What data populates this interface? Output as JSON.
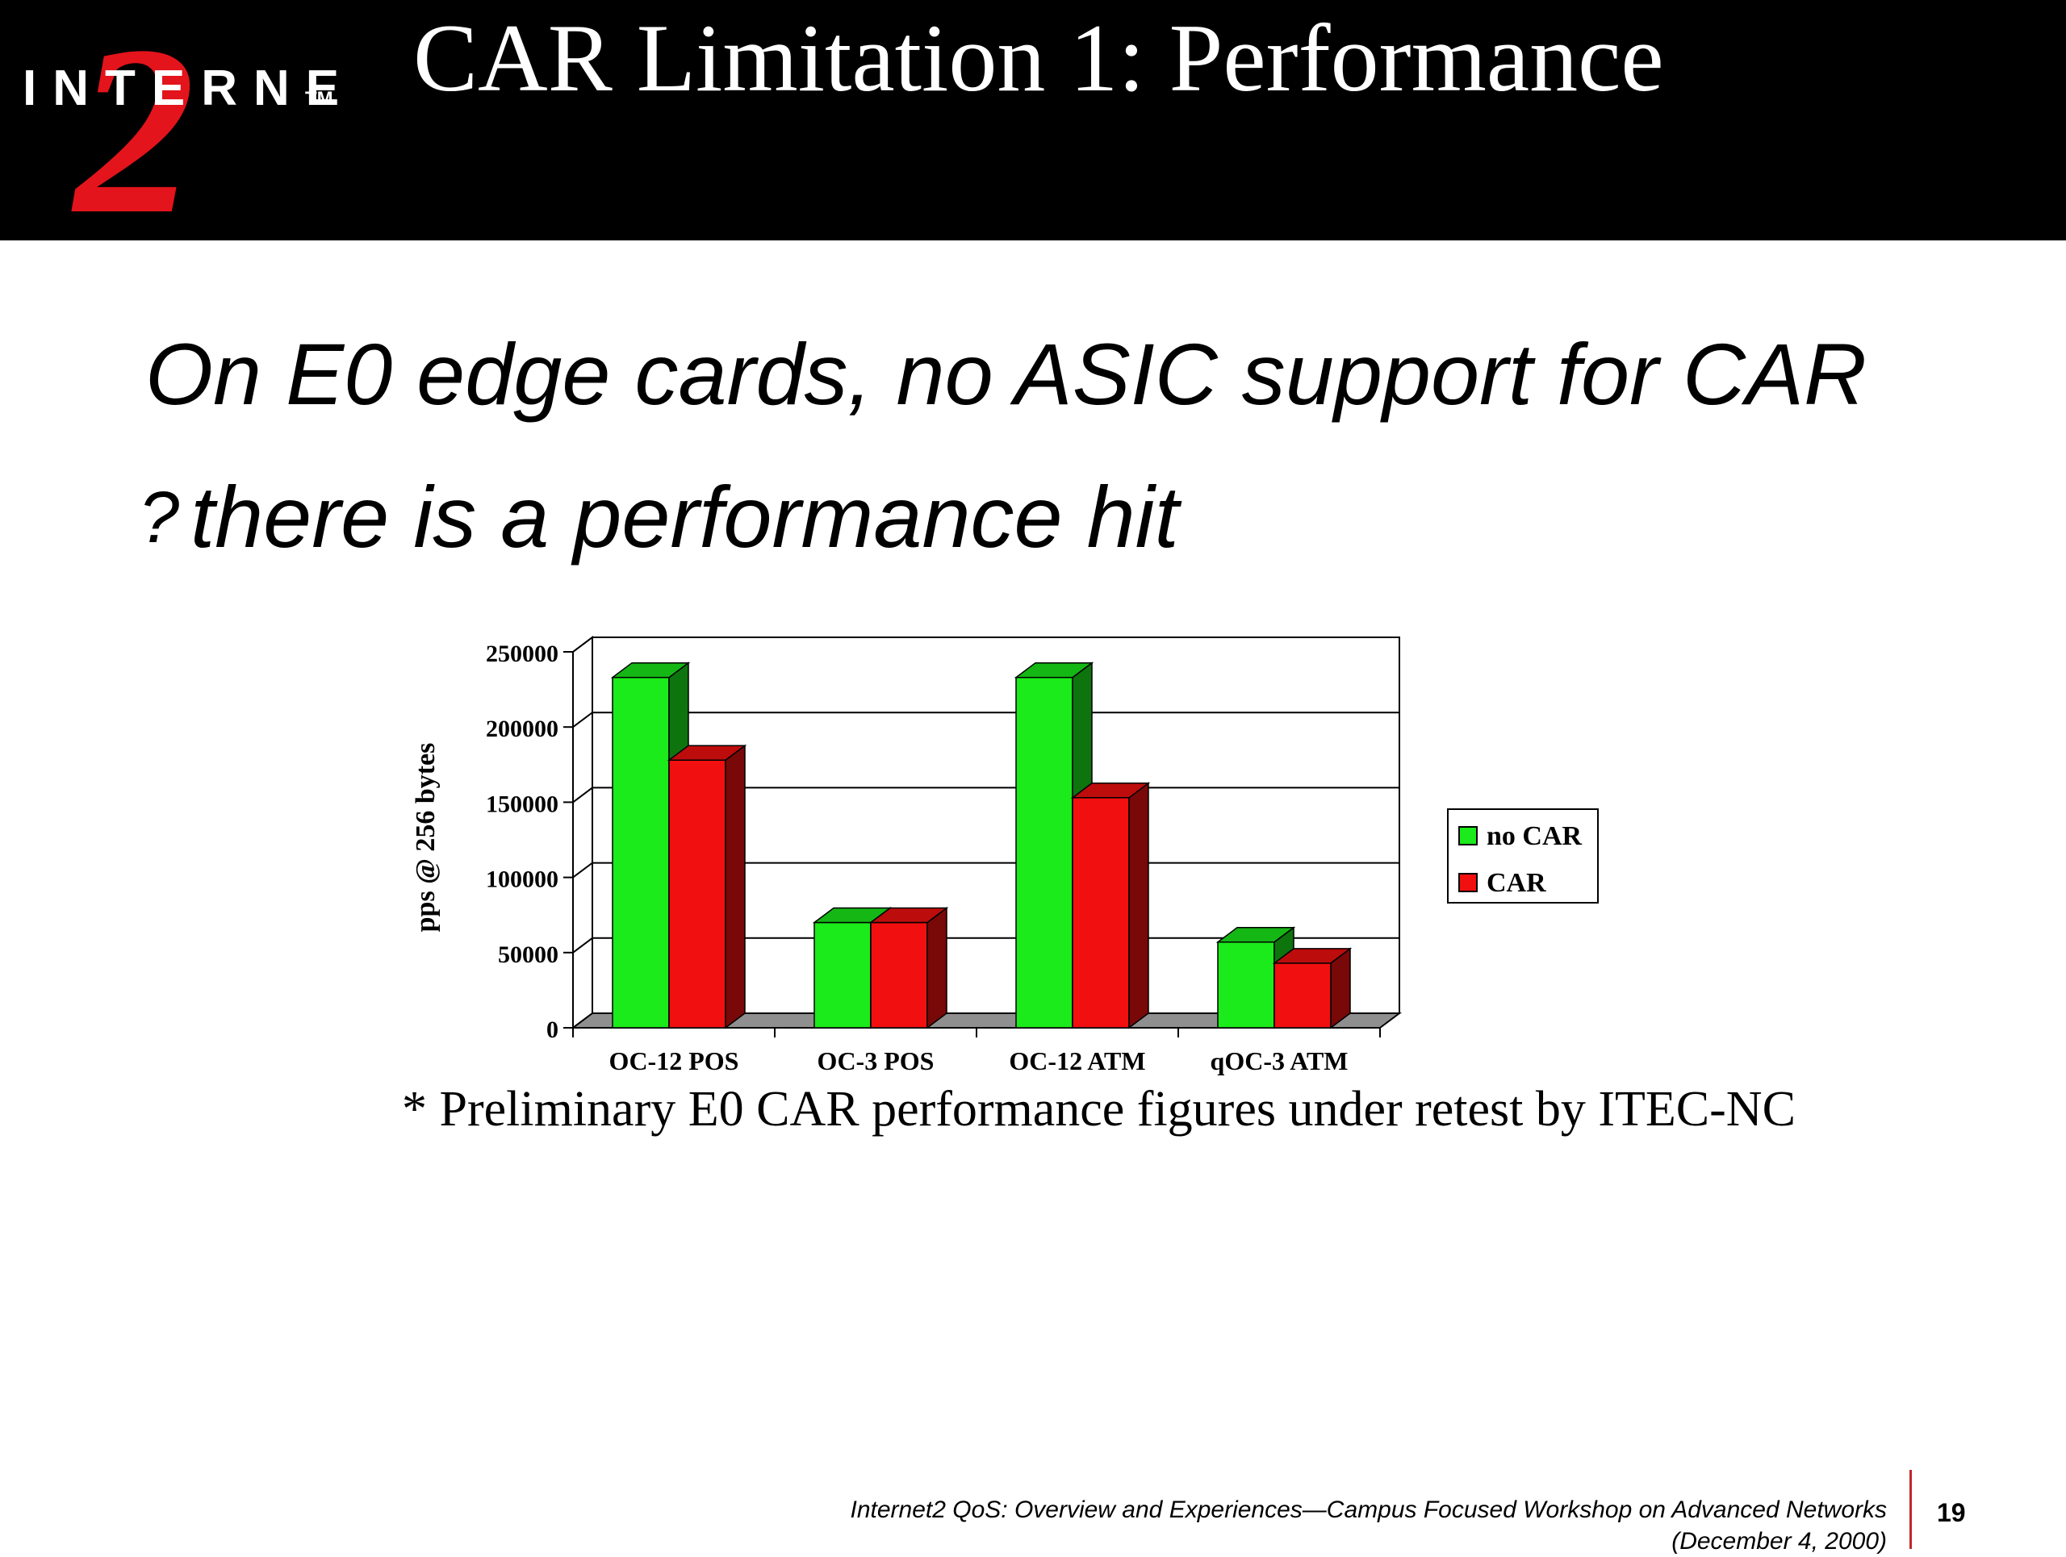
{
  "slide": {
    "title": "CAR Limitation 1: Performance",
    "bullet_line_1": "On E0 edge cards, no ASIC support for CAR",
    "bullet_glyph": "?",
    "bullet_line_2": "there is a performance hit",
    "footnote": "* Preliminary E0 CAR performance figures under retest by ITEC-NC",
    "footer_line_1": "Internet2 QoS: Overview and Experiences—Campus Focused Workshop on Advanced Networks",
    "footer_line_2": "(December 4, 2000)",
    "page_number": "19"
  },
  "logo": {
    "wordmark": "INTERNET",
    "trademark": "TM",
    "numeral": "2",
    "numeral_color": "#e3141b"
  },
  "chart_data": {
    "type": "bar",
    "style": "3d-clustered",
    "categories": [
      "OC-12 POS",
      "OC-3 POS",
      "OC-12 ATM",
      "qOC-3 ATM"
    ],
    "series": [
      {
        "name": "no CAR",
        "values": [
          233000,
          70000,
          233000,
          57000
        ],
        "color": "#1bea1b"
      },
      {
        "name": "CAR",
        "values": [
          178000,
          70000,
          153000,
          43000
        ],
        "color": "#f20f0f"
      }
    ],
    "ylabel": "pps @ 256 bytes",
    "ylim": [
      0,
      250000
    ],
    "yticks": [
      0,
      50000,
      100000,
      150000,
      200000,
      250000
    ],
    "grid": true,
    "legend": "right"
  }
}
